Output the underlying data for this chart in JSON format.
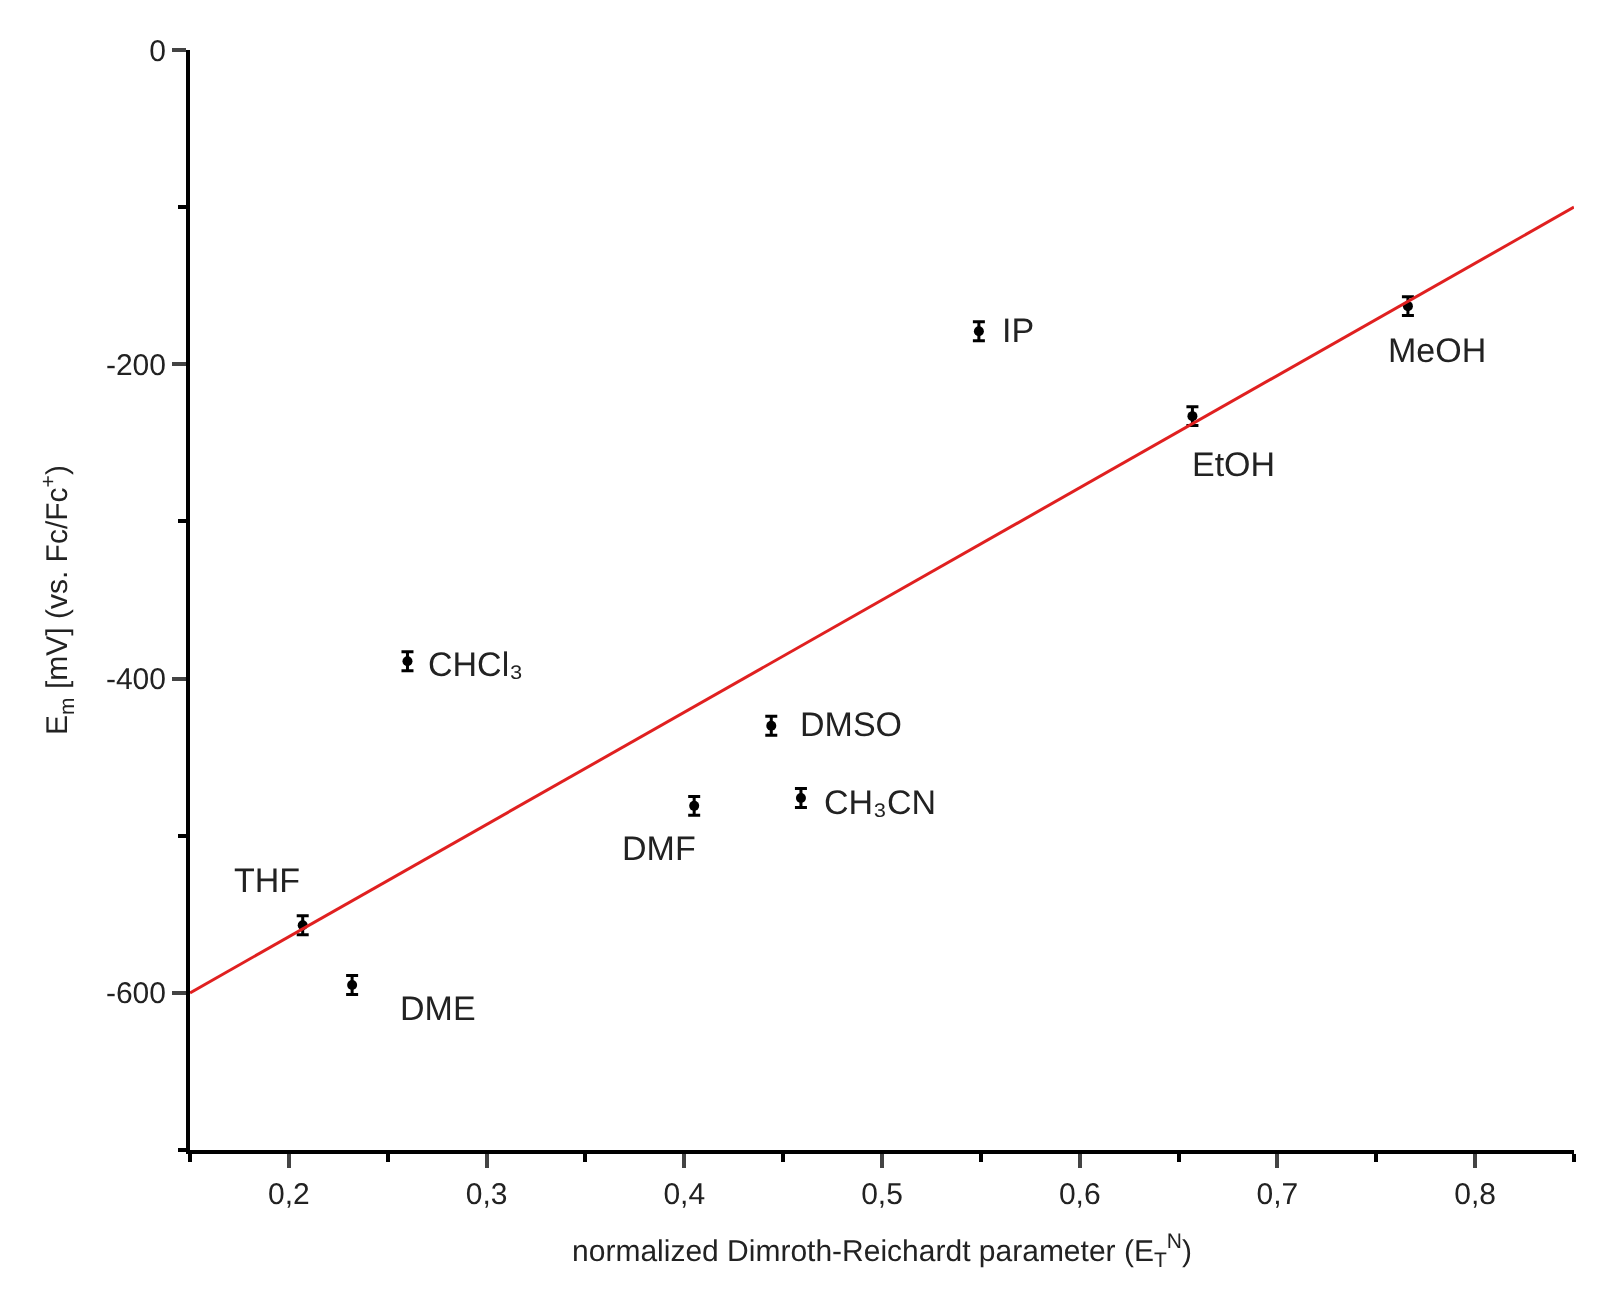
{
  "chart_data": {
    "type": "scatter",
    "xlabel": "normalized Dimroth-Reichardt parameter (E$_{T}$$^{N}$)",
    "ylabel": "E$_{m}$ [mV] (vs. Fc/Fc$^{+}$)",
    "xlim": [
      0.15,
      0.85
    ],
    "xticks": [
      {
        "value": 0.2,
        "label": "0,2"
      },
      {
        "value": 0.3,
        "label": "0,3"
      },
      {
        "value": 0.4,
        "label": "0,4"
      },
      {
        "value": 0.5,
        "label": "0,5"
      },
      {
        "value": 0.6,
        "label": "0,6"
      },
      {
        "value": 0.7,
        "label": "0,7"
      },
      {
        "value": 0.8,
        "label": "0,8"
      }
    ],
    "ylim": [
      -700,
      0
    ],
    "yticks": [
      -600,
      -400,
      -200,
      0
    ],
    "series": [
      {
        "color": "#000000",
        "x": [
          0.207,
          0.232,
          0.26,
          0.405,
          0.444,
          0.459,
          0.549,
          0.657,
          0.766
        ],
        "values": [
          -557,
          -595,
          -389,
          -481,
          -430,
          -476,
          -179,
          -233,
          -163
        ],
        "errors": [
          6,
          6,
          6,
          6,
          6,
          6,
          6,
          6,
          6
        ]
      },
      {
        "type": "line",
        "color": "#e02020",
        "x": [
          0.15,
          0.85
        ],
        "values": [
          -600,
          -100
        ],
        "line_style": "solid"
      }
    ],
    "annotations": [
      {
        "text": "THF",
        "x": 0.207,
        "y": -557
      },
      {
        "text": "DME",
        "x": 0.232,
        "y": -595
      },
      {
        "text": "CHCl₃",
        "x": 0.26,
        "y": -389
      },
      {
        "text": "DMF",
        "x": 0.405,
        "y": -481
      },
      {
        "text": "DMSO",
        "x": 0.444,
        "y": -430
      },
      {
        "text": "CH₃CN",
        "x": 0.459,
        "y": -476
      },
      {
        "text": "IP",
        "x": 0.549,
        "y": -179
      },
      {
        "text": "EtOH",
        "x": 0.657,
        "y": -233
      },
      {
        "text": "MeOH",
        "x": 0.766,
        "y": -163
      }
    ]
  }
}
